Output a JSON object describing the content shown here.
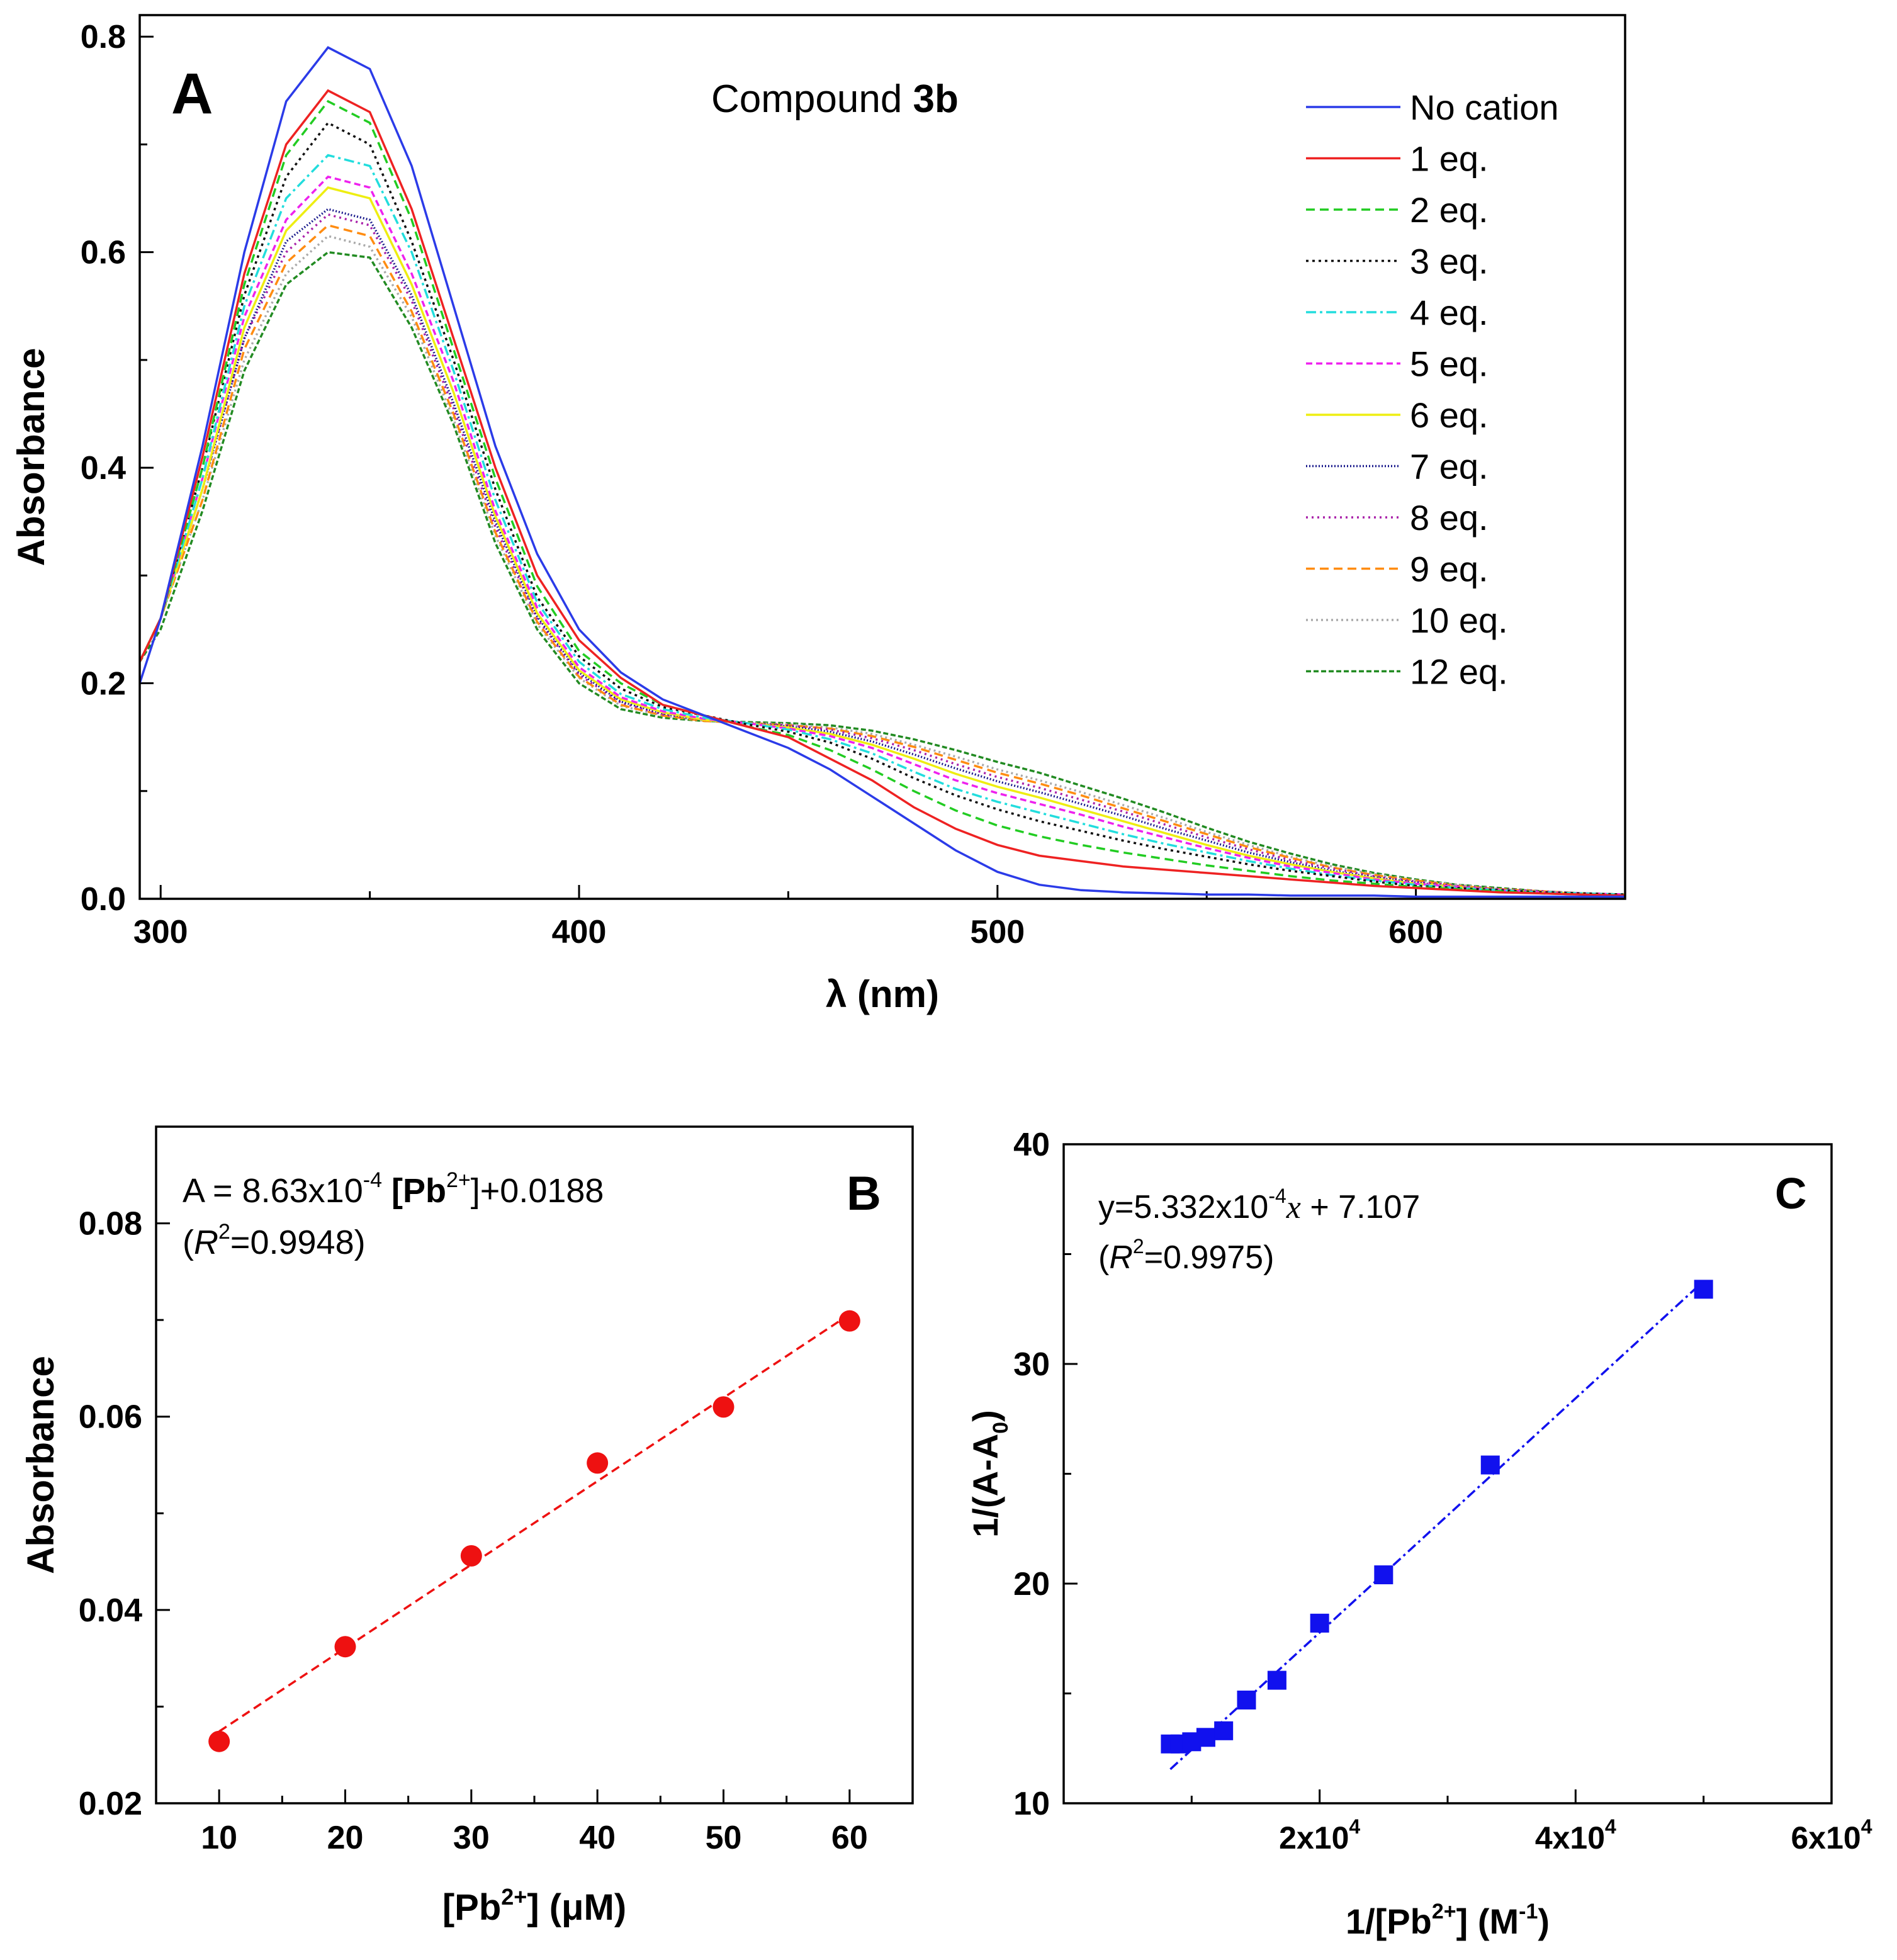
{
  "chart_data": [
    {
      "panel": "A",
      "type": "line",
      "title_prefix": "Compound ",
      "title_bold": "3b",
      "panel_label": "A",
      "xlabel": "λ (nm)",
      "ylabel": "Absorbance",
      "xlim": [
        295,
        650
      ],
      "ylim": [
        0.0,
        0.82
      ],
      "xticks": [
        300,
        400,
        500,
        600
      ],
      "yticks": [
        0.0,
        0.2,
        0.4,
        0.6,
        0.8
      ],
      "ytick_labels": [
        "0.0",
        "0.2",
        "0.4",
        "0.6",
        "0.8"
      ],
      "legend_position": "top-right",
      "x": [
        295,
        300,
        310,
        320,
        330,
        340,
        350,
        360,
        370,
        380,
        390,
        400,
        410,
        420,
        430,
        440,
        450,
        460,
        470,
        480,
        490,
        500,
        510,
        520,
        530,
        540,
        550,
        560,
        570,
        580,
        590,
        600,
        610,
        620,
        630,
        640,
        650
      ],
      "series": [
        {
          "name": "No cation",
          "color": "#2b3be8",
          "dash": "none",
          "values": [
            0.2,
            0.26,
            0.42,
            0.6,
            0.74,
            0.79,
            0.77,
            0.68,
            0.55,
            0.42,
            0.32,
            0.25,
            0.21,
            0.185,
            0.17,
            0.155,
            0.14,
            0.12,
            0.095,
            0.07,
            0.045,
            0.025,
            0.013,
            0.008,
            0.006,
            0.005,
            0.004,
            0.004,
            0.003,
            0.003,
            0.003,
            0.002,
            0.002,
            0.002,
            0.002,
            0.002,
            0.002
          ]
        },
        {
          "name": "1 eq.",
          "color": "#ee2222",
          "dash": "none",
          "values": [
            0.22,
            0.26,
            0.41,
            0.58,
            0.7,
            0.75,
            0.73,
            0.64,
            0.52,
            0.4,
            0.3,
            0.24,
            0.205,
            0.18,
            0.17,
            0.16,
            0.15,
            0.13,
            0.11,
            0.085,
            0.065,
            0.05,
            0.04,
            0.035,
            0.03,
            0.027,
            0.024,
            0.021,
            0.018,
            0.015,
            0.012,
            0.01,
            0.008,
            0.006,
            0.005,
            0.004,
            0.003
          ]
        },
        {
          "name": "2 eq.",
          "color": "#22cc22",
          "dash": "14,8",
          "values": [
            0.22,
            0.26,
            0.4,
            0.57,
            0.69,
            0.74,
            0.72,
            0.63,
            0.51,
            0.39,
            0.29,
            0.23,
            0.2,
            0.18,
            0.17,
            0.16,
            0.152,
            0.138,
            0.12,
            0.1,
            0.082,
            0.068,
            0.058,
            0.05,
            0.043,
            0.037,
            0.031,
            0.026,
            0.021,
            0.017,
            0.014,
            0.011,
            0.009,
            0.007,
            0.005,
            0.004,
            0.003
          ]
        },
        {
          "name": "3 eq.",
          "color": "#111111",
          "dash": "4,6",
          "values": [
            0.22,
            0.26,
            0.4,
            0.56,
            0.67,
            0.72,
            0.7,
            0.61,
            0.5,
            0.38,
            0.28,
            0.225,
            0.195,
            0.178,
            0.17,
            0.162,
            0.155,
            0.145,
            0.13,
            0.112,
            0.096,
            0.083,
            0.072,
            0.063,
            0.054,
            0.046,
            0.039,
            0.032,
            0.026,
            0.021,
            0.016,
            0.012,
            0.01,
            0.008,
            0.006,
            0.005,
            0.004
          ]
        },
        {
          "name": "4 eq.",
          "color": "#22dddd",
          "dash": "16,6,4,6",
          "values": [
            0.22,
            0.26,
            0.39,
            0.55,
            0.65,
            0.69,
            0.68,
            0.6,
            0.49,
            0.37,
            0.275,
            0.22,
            0.19,
            0.176,
            0.168,
            0.163,
            0.157,
            0.148,
            0.135,
            0.118,
            0.102,
            0.09,
            0.08,
            0.07,
            0.06,
            0.051,
            0.043,
            0.035,
            0.028,
            0.022,
            0.017,
            0.013,
            0.01,
            0.008,
            0.006,
            0.005,
            0.004
          ]
        },
        {
          "name": "5 eq.",
          "color": "#ee22ee",
          "dash": "10,6",
          "values": [
            0.22,
            0.26,
            0.39,
            0.54,
            0.63,
            0.67,
            0.66,
            0.58,
            0.48,
            0.36,
            0.27,
            0.215,
            0.187,
            0.174,
            0.167,
            0.163,
            0.158,
            0.151,
            0.14,
            0.125,
            0.11,
            0.098,
            0.088,
            0.078,
            0.067,
            0.057,
            0.047,
            0.038,
            0.03,
            0.024,
            0.018,
            0.014,
            0.011,
            0.008,
            0.006,
            0.005,
            0.004
          ]
        },
        {
          "name": "6 eq.",
          "color": "#eeee11",
          "dash": "none",
          "values": [
            0.22,
            0.26,
            0.38,
            0.53,
            0.62,
            0.66,
            0.65,
            0.57,
            0.47,
            0.355,
            0.265,
            0.212,
            0.185,
            0.173,
            0.166,
            0.163,
            0.159,
            0.153,
            0.143,
            0.13,
            0.116,
            0.104,
            0.094,
            0.083,
            0.072,
            0.061,
            0.05,
            0.04,
            0.032,
            0.025,
            0.019,
            0.014,
            0.011,
            0.008,
            0.006,
            0.005,
            0.004
          ]
        },
        {
          "name": "7 eq.",
          "color": "#1a1a8c",
          "dash": "2,3",
          "values": [
            0.22,
            0.26,
            0.38,
            0.52,
            0.61,
            0.64,
            0.63,
            0.56,
            0.46,
            0.35,
            0.262,
            0.21,
            0.183,
            0.172,
            0.166,
            0.163,
            0.16,
            0.155,
            0.146,
            0.134,
            0.121,
            0.109,
            0.099,
            0.088,
            0.077,
            0.065,
            0.054,
            0.043,
            0.034,
            0.026,
            0.02,
            0.015,
            0.011,
            0.008,
            0.006,
            0.005,
            0.004
          ]
        },
        {
          "name": "8 eq.",
          "color": "#aa22aa",
          "dash": "3,6",
          "values": [
            0.22,
            0.26,
            0.38,
            0.52,
            0.6,
            0.635,
            0.625,
            0.555,
            0.455,
            0.345,
            0.26,
            0.208,
            0.182,
            0.171,
            0.166,
            0.163,
            0.161,
            0.157,
            0.149,
            0.138,
            0.125,
            0.113,
            0.103,
            0.092,
            0.081,
            0.069,
            0.057,
            0.046,
            0.036,
            0.028,
            0.021,
            0.016,
            0.012,
            0.009,
            0.007,
            0.005,
            0.004
          ]
        },
        {
          "name": "9 eq.",
          "color": "#ff8c11",
          "dash": "14,8",
          "values": [
            0.22,
            0.26,
            0.37,
            0.51,
            0.59,
            0.625,
            0.615,
            0.545,
            0.45,
            0.34,
            0.257,
            0.206,
            0.18,
            0.17,
            0.165,
            0.163,
            0.161,
            0.158,
            0.151,
            0.141,
            0.129,
            0.117,
            0.107,
            0.096,
            0.084,
            0.072,
            0.06,
            0.048,
            0.038,
            0.029,
            0.022,
            0.017,
            0.012,
            0.009,
            0.007,
            0.005,
            0.004
          ]
        },
        {
          "name": "10 eq.",
          "color": "#aaaaaa",
          "dash": "3,5",
          "values": [
            0.22,
            0.26,
            0.37,
            0.5,
            0.58,
            0.615,
            0.605,
            0.54,
            0.445,
            0.337,
            0.255,
            0.205,
            0.179,
            0.17,
            0.165,
            0.163,
            0.162,
            0.159,
            0.153,
            0.143,
            0.132,
            0.12,
            0.11,
            0.099,
            0.087,
            0.075,
            0.062,
            0.05,
            0.039,
            0.03,
            0.023,
            0.017,
            0.013,
            0.009,
            0.007,
            0.005,
            0.004
          ]
        },
        {
          "name": "12 eq.",
          "color": "#228b22",
          "dash": "8,4",
          "values": [
            0.22,
            0.25,
            0.36,
            0.49,
            0.57,
            0.6,
            0.595,
            0.53,
            0.44,
            0.33,
            0.25,
            0.2,
            0.176,
            0.168,
            0.165,
            0.164,
            0.163,
            0.161,
            0.156,
            0.148,
            0.138,
            0.127,
            0.117,
            0.105,
            0.093,
            0.08,
            0.066,
            0.053,
            0.042,
            0.032,
            0.024,
            0.018,
            0.013,
            0.01,
            0.007,
            0.005,
            0.004
          ]
        }
      ]
    },
    {
      "panel": "B",
      "type": "scatter",
      "panel_label": "B",
      "xlabel": "[Pb²⁺] (μM)",
      "xlabel_parts": [
        "[Pb",
        "2+",
        "] (μM)"
      ],
      "ylabel": "Absorbance",
      "xlim": [
        5,
        65
      ],
      "ylim": [
        0.02,
        0.09
      ],
      "xticks": [
        10,
        20,
        30,
        40,
        50,
        60
      ],
      "yticks": [
        0.02,
        0.04,
        0.06,
        0.08
      ],
      "ytick_labels": [
        "0.02",
        "0.04",
        "0.06",
        "0.08"
      ],
      "x": [
        10,
        20,
        30,
        40,
        50,
        60
      ],
      "y": [
        0.0264,
        0.0362,
        0.0456,
        0.0552,
        0.061,
        0.0699
      ],
      "marker_color": "#ee1111",
      "fit": {
        "slope": 0.000863,
        "intercept": 0.0188,
        "color": "#ee1111",
        "x_range": [
          10,
          60
        ]
      },
      "equation_parts": [
        "A = 8.63x10",
        "-4",
        " [Pb",
        "2+",
        "]+0.0188"
      ],
      "r2_parts": [
        "(",
        "R",
        "2",
        "=0.9948)"
      ]
    },
    {
      "panel": "C",
      "type": "scatter",
      "panel_label": "C",
      "xlabel": "1/[Pb²⁺] (M⁻¹)",
      "xlabel_parts": [
        "1/[Pb",
        "2+",
        "] (M",
        "-1",
        ")"
      ],
      "ylabel": "1/(A-A₀)",
      "ylabel_parts": [
        "1/(A-A",
        "0",
        ")"
      ],
      "xlim": [
        0,
        60000
      ],
      "ylim": [
        10,
        40
      ],
      "xticks": [
        20000,
        40000,
        60000
      ],
      "xtick_labels": [
        [
          "2x10",
          "4"
        ],
        [
          "4x10",
          "4"
        ],
        [
          "6x10",
          "4"
        ]
      ],
      "yticks": [
        10,
        20,
        30,
        40
      ],
      "ytick_labels": [
        "10",
        "20",
        "30",
        "40"
      ],
      "x": [
        8333,
        9091,
        10000,
        11111,
        12500,
        14286,
        16667,
        20000,
        25000,
        33333,
        50000
      ],
      "y": [
        12.7,
        12.7,
        12.8,
        13.0,
        13.3,
        14.7,
        15.6,
        18.2,
        20.4,
        25.4,
        33.4
      ],
      "marker_color": "#1111ee",
      "fit": {
        "slope": 0.0005332,
        "intercept": 7.107,
        "color": "#1111ee",
        "x_range": [
          8333,
          50000
        ]
      },
      "equation_parts": [
        "y=5.332x10",
        "-4",
        "x",
        " + 7.107"
      ],
      "r2_parts": [
        "(",
        "R",
        "2",
        "=0.9975)"
      ]
    }
  ]
}
